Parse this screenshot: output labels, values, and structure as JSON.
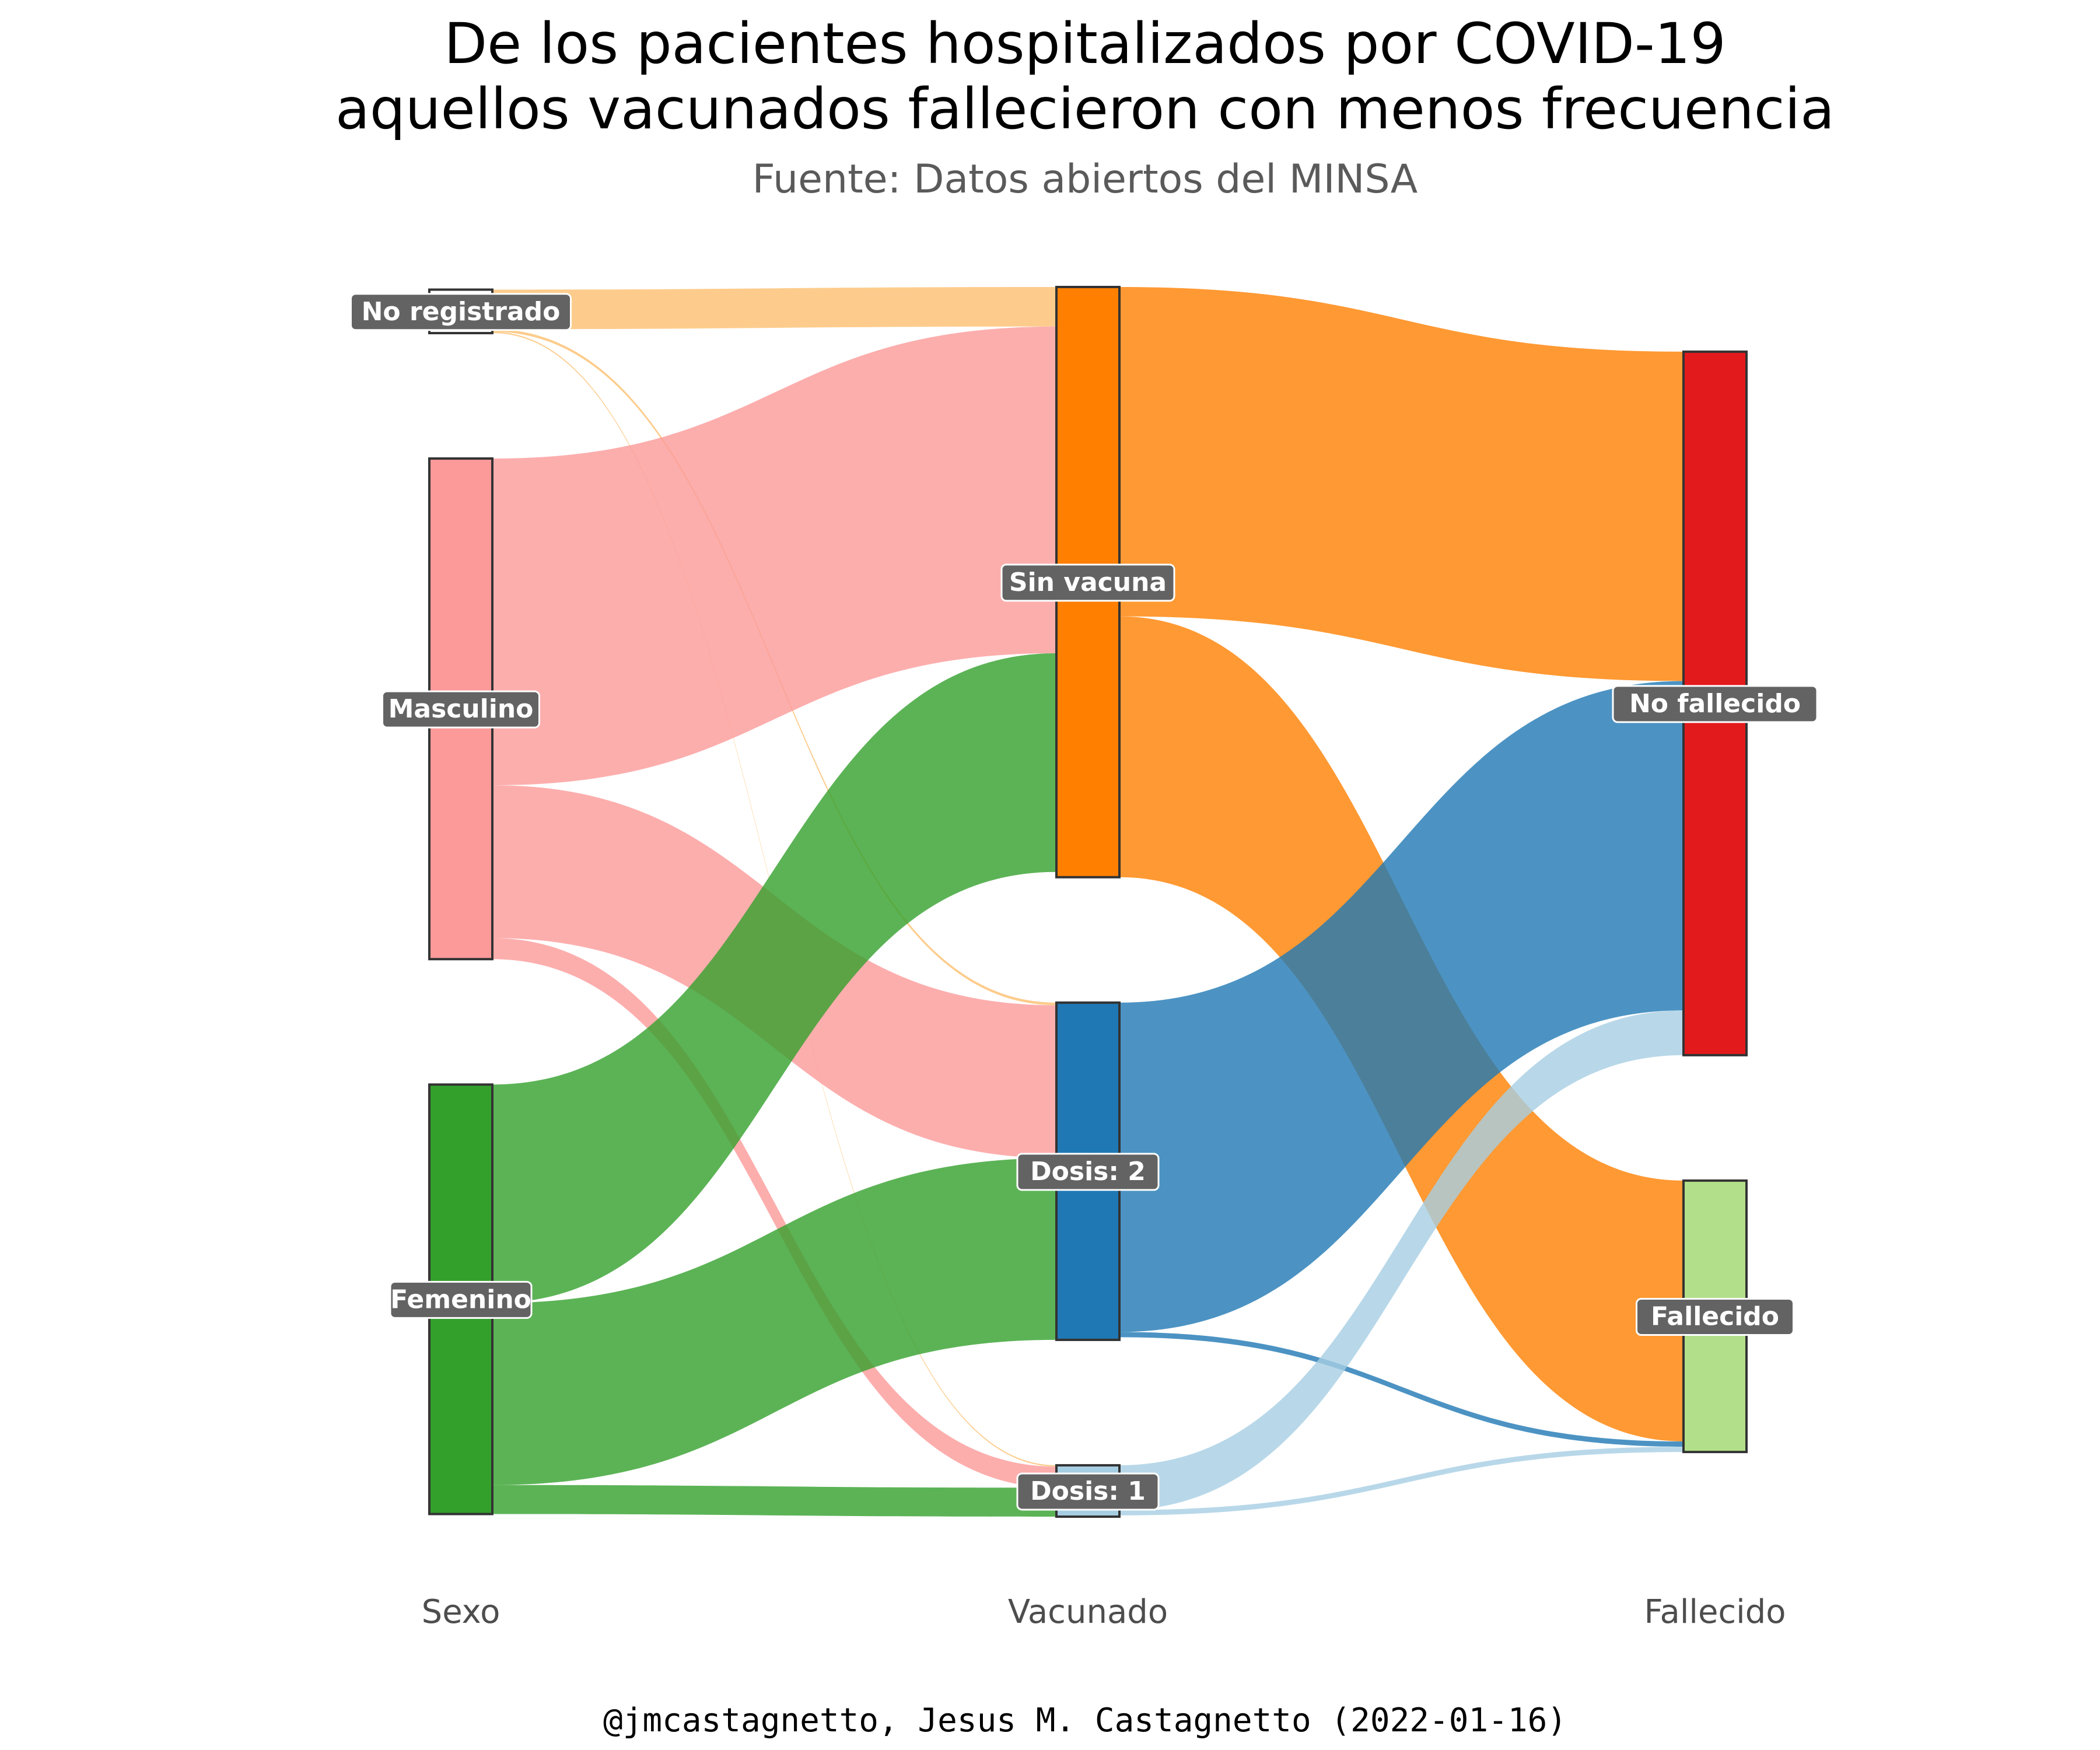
{
  "chart_data": {
    "type": "sankey",
    "title_line1": "De los pacientes hospitalizados por COVID-19",
    "title_line2": "aquellos vacunados fallecieron con menos frecuencia",
    "subtitle": "Fuente: Datos abiertos del MINSA",
    "caption": "@jmcastagnetto, Jesus M. Castagnetto (2022-01-16)",
    "axes": [
      "Sexo",
      "Vacunado",
      "Fallecido"
    ],
    "nodes": [
      {
        "id": "no_registrado",
        "label": "No registrado",
        "axis": 0,
        "color": "#ffffff"
      },
      {
        "id": "masculino",
        "label": "Masculino",
        "axis": 0,
        "color": "#fb9a99"
      },
      {
        "id": "femenino",
        "label": "Femenino",
        "axis": 0,
        "color": "#33a02c"
      },
      {
        "id": "sin_vacuna",
        "label": "Sin vacuna",
        "axis": 1,
        "color": "#ff7f00"
      },
      {
        "id": "dosis2",
        "label": "Dosis: 2",
        "axis": 1,
        "color": "#1f78b4"
      },
      {
        "id": "dosis1",
        "label": "Dosis: 1",
        "axis": 1,
        "color": "#a6cee3"
      },
      {
        "id": "no_fallecido",
        "label": "No fallecido",
        "axis": 2,
        "color": "#e31a1c"
      },
      {
        "id": "fallecido",
        "label": "Fallecido",
        "axis": 2,
        "color": "#b2df8a"
      }
    ],
    "links": [
      {
        "source": "no_registrado",
        "target": "sin_vacuna",
        "value": 1.5,
        "color": "#fdbf6f"
      },
      {
        "source": "no_registrado",
        "target": "dosis2",
        "value": 0.1,
        "color": "#fdbf6f"
      },
      {
        "source": "no_registrado",
        "target": "dosis1",
        "value": 0.05,
        "color": "#fdbf6f"
      },
      {
        "source": "masculino",
        "target": "sin_vacuna",
        "value": 12.4,
        "color": "#fb9a99"
      },
      {
        "source": "masculino",
        "target": "dosis2",
        "value": 5.8,
        "color": "#fb9a99"
      },
      {
        "source": "masculino",
        "target": "dosis1",
        "value": 0.8,
        "color": "#fb9a99"
      },
      {
        "source": "femenino",
        "target": "sin_vacuna",
        "value": 8.3,
        "color": "#33a02c"
      },
      {
        "source": "femenino",
        "target": "dosis2",
        "value": 6.9,
        "color": "#33a02c"
      },
      {
        "source": "femenino",
        "target": "dosis1",
        "value": 1.1,
        "color": "#33a02c"
      },
      {
        "source": "sin_vacuna",
        "target": "no_fallecido",
        "value": 12.5,
        "color": "#ff7f00"
      },
      {
        "source": "sin_vacuna",
        "target": "fallecido",
        "value": 9.9,
        "color": "#ff7f00"
      },
      {
        "source": "dosis2",
        "target": "no_fallecido",
        "value": 12.5,
        "color": "#1f78b4"
      },
      {
        "source": "dosis2",
        "target": "fallecido",
        "value": 0.2,
        "color": "#1f78b4"
      },
      {
        "source": "dosis1",
        "target": "no_fallecido",
        "value": 1.7,
        "color": "#a6cee3"
      },
      {
        "source": "dosis1",
        "target": "fallecido",
        "value": 0.2,
        "color": "#a6cee3"
      }
    ]
  }
}
